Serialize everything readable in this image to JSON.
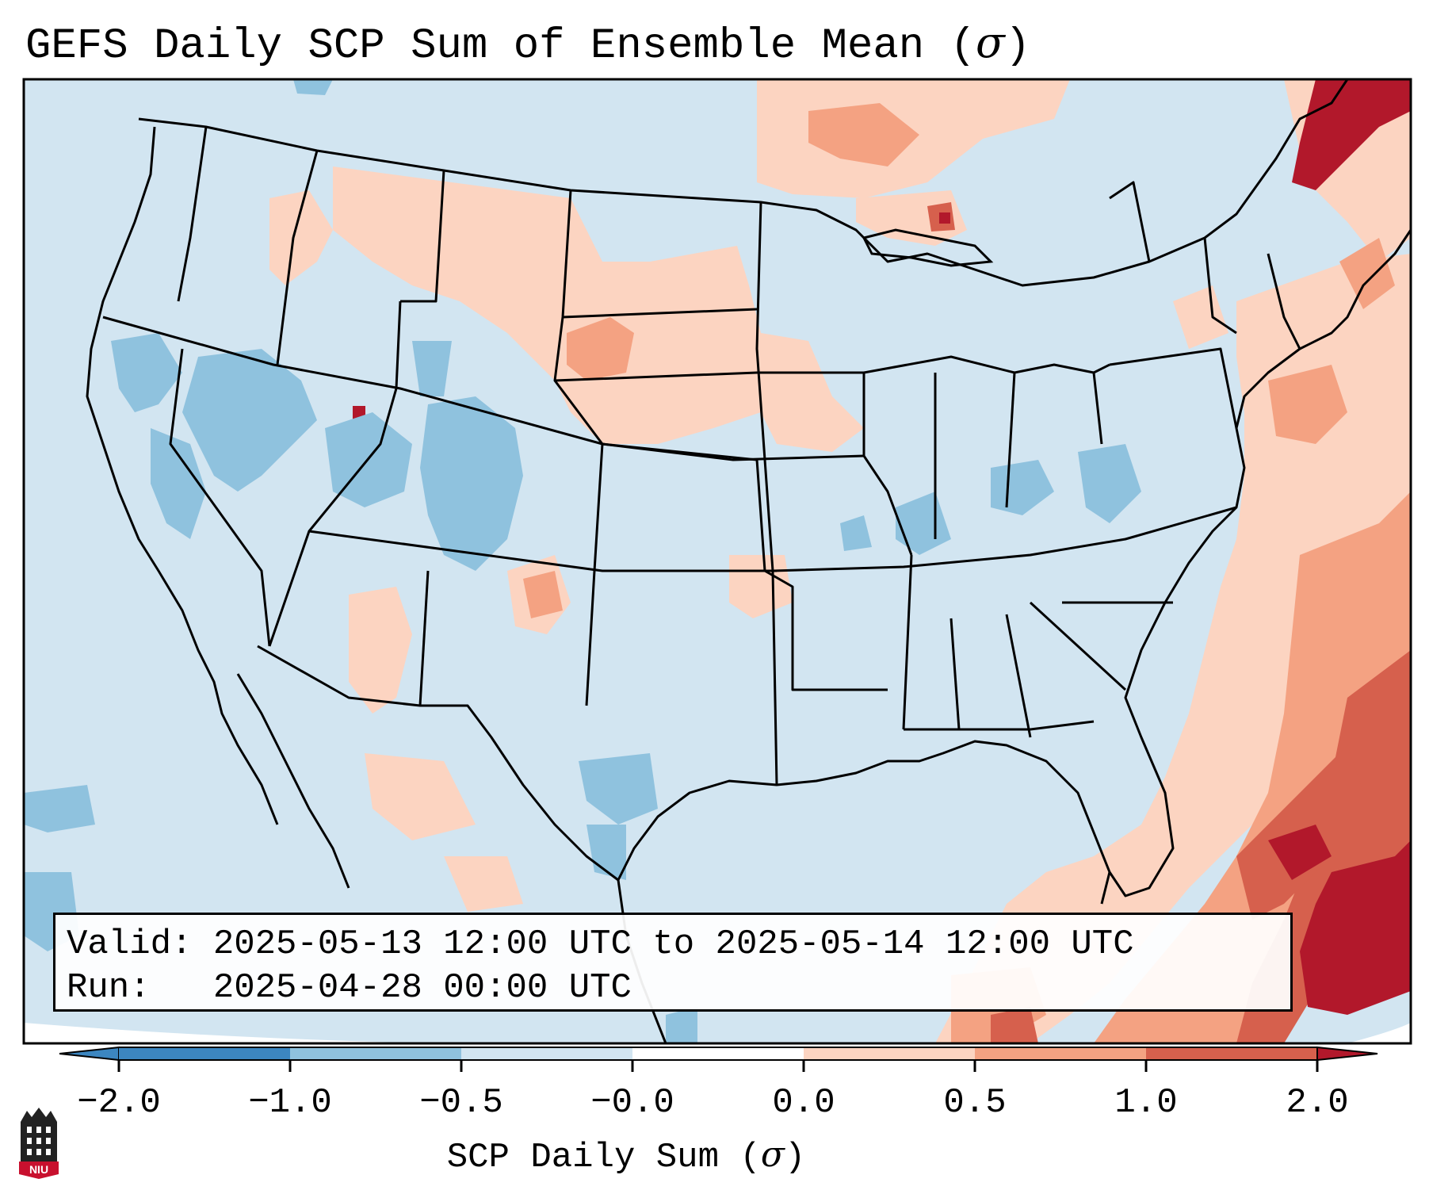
{
  "title": {
    "text": "GEFS Daily SCP Sum of Ensemble Mean (",
    "symbol": "σ",
    "close": ")"
  },
  "info_box": {
    "valid_line": "Valid: 2025-05-13 12:00 UTC to 2025-05-14 12:00 UTC",
    "run_line": "Run:   2025-04-28 00:00 UTC"
  },
  "colorbar": {
    "label_text": "SCP Daily Sum (",
    "label_symbol": "σ",
    "label_close": ")",
    "ticks": [
      "−2.0",
      "−1.0",
      "−0.5",
      "−0.0",
      "0.0",
      "0.5",
      "1.0",
      "2.0"
    ],
    "colors": [
      "#3c86c0",
      "#8fc2de",
      "#d2e5f1",
      "#ffffff",
      "#fcd4c1",
      "#f4a282",
      "#d6604d",
      "#b2182b"
    ]
  },
  "logo": {
    "text": "NIU",
    "icon": "niu-tower-logo-icon"
  },
  "map": {
    "domain": "CONUS",
    "field": "SCP daily sum anomaly",
    "background_color": "#d2e5f1",
    "ocean_outside_color": "#ffffff",
    "regions_positive": [
      "northern-plains",
      "upper-midwest",
      "great-lakes-north",
      "new-england",
      "gulf-of-maine",
      "western-atlantic",
      "bahamas",
      "caribbean"
    ],
    "regions_negative": [
      "great-basin",
      "utah-colorado",
      "ohio-valley",
      "west-texas"
    ]
  }
}
